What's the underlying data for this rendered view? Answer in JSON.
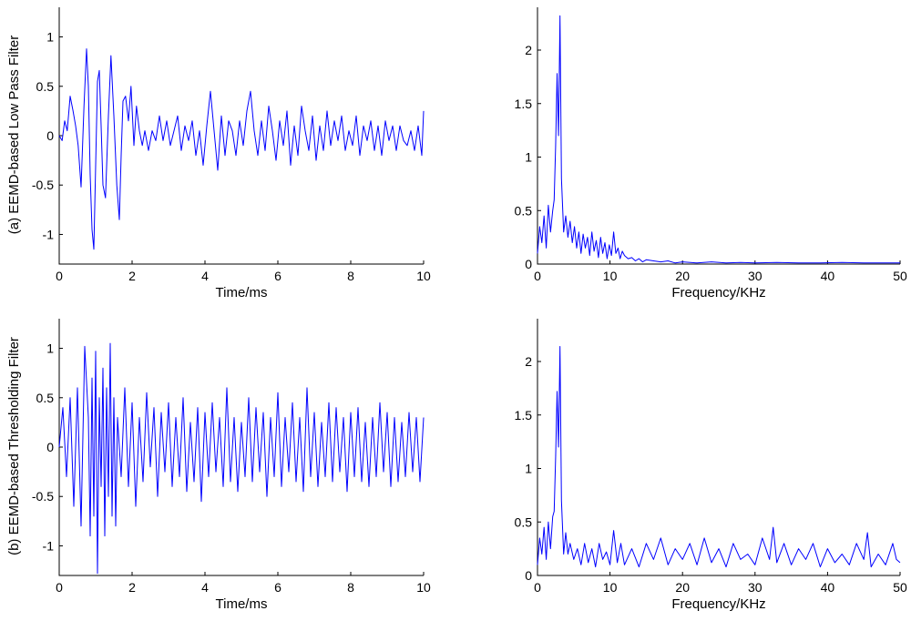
{
  "figure": {
    "row_labels": [
      "(a) EEMD-based Low Pass Filter",
      "(b) EEMD-based Thresholding Filter"
    ]
  },
  "colors": {
    "line": "#0000ff",
    "axis": "#000000",
    "background": "#ffffff"
  },
  "chart_data": [
    {
      "id": "a-time",
      "type": "line",
      "title": "",
      "xlabel": "Time/ms",
      "ylabel": "(a) EEMD-based Low Pass Filter",
      "xlim": [
        0,
        10
      ],
      "ylim": [
        -1.3,
        1.3
      ],
      "xticks": [
        0,
        2,
        4,
        6,
        8,
        10
      ],
      "yticks": [
        -1,
        -0.5,
        0,
        0.5,
        1
      ],
      "ytick_labels": [
        "-1",
        "-0.5",
        "0",
        "0.5",
        "1"
      ],
      "series": [
        {
          "x": [
            0,
            0.08,
            0.15,
            0.22,
            0.3,
            0.38,
            0.45,
            0.52,
            0.6,
            0.68,
            0.75,
            0.8,
            0.85,
            0.9,
            0.95,
            1.0,
            1.05,
            1.1,
            1.15,
            1.2,
            1.27,
            1.35,
            1.42,
            1.5,
            1.58,
            1.65,
            1.7,
            1.75,
            1.82,
            1.9,
            1.97,
            2.05,
            2.12,
            2.2,
            2.28,
            2.35,
            2.45,
            2.55,
            2.65,
            2.75,
            2.85,
            2.95,
            3.05,
            3.15,
            3.25,
            3.35,
            3.45,
            3.55,
            3.65,
            3.75,
            3.85,
            3.95,
            4.05,
            4.15,
            4.25,
            4.35,
            4.45,
            4.55,
            4.65,
            4.75,
            4.85,
            4.95,
            5.05,
            5.15,
            5.25,
            5.35,
            5.45,
            5.55,
            5.65,
            5.75,
            5.85,
            5.95,
            6.05,
            6.15,
            6.25,
            6.35,
            6.45,
            6.55,
            6.65,
            6.75,
            6.85,
            6.95,
            7.05,
            7.15,
            7.25,
            7.35,
            7.45,
            7.55,
            7.65,
            7.75,
            7.85,
            7.95,
            8.05,
            8.15,
            8.25,
            8.35,
            8.45,
            8.55,
            8.65,
            8.75,
            8.85,
            8.95,
            9.05,
            9.15,
            9.25,
            9.35,
            9.45,
            9.55,
            9.65,
            9.75,
            9.85,
            9.95,
            10.0
          ],
          "y": [
            0,
            -0.05,
            0.15,
            0.05,
            0.4,
            0.25,
            0.1,
            -0.1,
            -0.52,
            0.3,
            0.88,
            0.5,
            -0.4,
            -0.95,
            -1.15,
            -0.3,
            0.55,
            0.66,
            0.1,
            -0.5,
            -0.63,
            0.2,
            0.81,
            0.2,
            -0.5,
            -0.85,
            -0.2,
            0.35,
            0.4,
            0.15,
            0.5,
            -0.1,
            0.3,
            0.05,
            -0.1,
            0.05,
            -0.15,
            0.05,
            -0.05,
            0.2,
            -0.05,
            0.15,
            -0.1,
            0.05,
            0.2,
            -0.15,
            0.1,
            -0.05,
            0.15,
            -0.2,
            0.05,
            -0.3,
            0.1,
            0.45,
            0.05,
            -0.35,
            0.2,
            -0.2,
            0.15,
            0.05,
            -0.2,
            0.15,
            -0.1,
            0.25,
            0.45,
            0.05,
            -0.2,
            0.15,
            -0.15,
            0.3,
            0.05,
            -0.25,
            0.15,
            -0.1,
            0.25,
            -0.3,
            0.1,
            -0.2,
            0.3,
            0.05,
            -0.15,
            0.2,
            -0.25,
            0.1,
            -0.15,
            0.25,
            -0.1,
            0.15,
            -0.05,
            0.2,
            -0.15,
            0.05,
            -0.1,
            0.2,
            -0.2,
            0.1,
            -0.05,
            0.15,
            -0.15,
            0.1,
            -0.2,
            0.15,
            -0.05,
            0.1,
            -0.15,
            0.1,
            -0.05,
            -0.1,
            0.05,
            -0.15,
            0.1,
            -0.2,
            0.25
          ]
        }
      ]
    },
    {
      "id": "a-spectrum",
      "type": "line",
      "title": "",
      "xlabel": "Frequency/KHz",
      "ylabel": "",
      "xlim": [
        0,
        50
      ],
      "ylim": [
        0,
        2.4
      ],
      "xticks": [
        0,
        10,
        20,
        30,
        40,
        50
      ],
      "yticks": [
        0,
        0.5,
        1,
        1.5,
        2
      ],
      "ytick_labels": [
        "0",
        "0.5",
        "1",
        "1.5",
        "2"
      ],
      "series": [
        {
          "x": [
            0,
            0.3,
            0.6,
            0.9,
            1.2,
            1.5,
            1.8,
            2.1,
            2.3,
            2.5,
            2.7,
            2.9,
            3.1,
            3.3,
            3.6,
            3.9,
            4.2,
            4.5,
            4.8,
            5.1,
            5.4,
            5.7,
            6.0,
            6.3,
            6.6,
            6.9,
            7.2,
            7.5,
            7.8,
            8.1,
            8.4,
            8.7,
            9.0,
            9.3,
            9.6,
            9.9,
            10.2,
            10.5,
            10.8,
            11.1,
            11.4,
            11.7,
            12.0,
            12.5,
            13.0,
            13.5,
            14.0,
            14.5,
            15.0,
            16.0,
            17.0,
            18.0,
            19.0,
            20.0,
            22.0,
            24.0,
            26.0,
            28.0,
            30.0,
            33.0,
            36.0,
            39.0,
            42.0,
            45.0,
            48.0,
            50.0
          ],
          "y": [
            0.1,
            0.35,
            0.2,
            0.45,
            0.15,
            0.55,
            0.3,
            0.5,
            0.6,
            1.1,
            1.78,
            1.2,
            2.32,
            0.8,
            0.3,
            0.45,
            0.25,
            0.4,
            0.2,
            0.35,
            0.15,
            0.3,
            0.1,
            0.28,
            0.15,
            0.25,
            0.08,
            0.3,
            0.12,
            0.22,
            0.06,
            0.25,
            0.1,
            0.2,
            0.05,
            0.18,
            0.08,
            0.3,
            0.1,
            0.15,
            0.05,
            0.12,
            0.08,
            0.05,
            0.06,
            0.03,
            0.05,
            0.02,
            0.04,
            0.03,
            0.02,
            0.03,
            0.01,
            0.02,
            0.01,
            0.02,
            0.01,
            0.015,
            0.01,
            0.015,
            0.01,
            0.01,
            0.015,
            0.01,
            0.01,
            0.01
          ]
        }
      ]
    },
    {
      "id": "b-time",
      "type": "line",
      "title": "",
      "xlabel": "Time/ms",
      "ylabel": "(b) EEMD-based Thresholding Filter",
      "xlim": [
        0,
        10
      ],
      "ylim": [
        -1.3,
        1.3
      ],
      "xticks": [
        0,
        2,
        4,
        6,
        8,
        10
      ],
      "yticks": [
        -1,
        -0.5,
        0,
        0.5,
        1
      ],
      "ytick_labels": [
        "-1",
        "-0.5",
        "0",
        "0.5",
        "1"
      ],
      "series": [
        {
          "x": [
            0,
            0.1,
            0.2,
            0.3,
            0.4,
            0.5,
            0.6,
            0.7,
            0.8,
            0.85,
            0.9,
            0.95,
            1.0,
            1.05,
            1.1,
            1.15,
            1.2,
            1.25,
            1.3,
            1.35,
            1.4,
            1.45,
            1.5,
            1.55,
            1.6,
            1.7,
            1.8,
            1.9,
            2.0,
            2.1,
            2.2,
            2.3,
            2.4,
            2.5,
            2.6,
            2.7,
            2.8,
            2.9,
            3.0,
            3.1,
            3.2,
            3.3,
            3.4,
            3.5,
            3.6,
            3.7,
            3.8,
            3.9,
            4.0,
            4.1,
            4.2,
            4.3,
            4.4,
            4.5,
            4.6,
            4.7,
            4.8,
            4.9,
            5.0,
            5.1,
            5.2,
            5.3,
            5.4,
            5.5,
            5.6,
            5.7,
            5.8,
            5.9,
            6.0,
            6.1,
            6.2,
            6.3,
            6.4,
            6.5,
            6.6,
            6.7,
            6.8,
            6.9,
            7.0,
            7.1,
            7.2,
            7.3,
            7.4,
            7.5,
            7.6,
            7.7,
            7.8,
            7.9,
            8.0,
            8.1,
            8.2,
            8.3,
            8.4,
            8.5,
            8.6,
            8.7,
            8.8,
            8.9,
            9.0,
            9.1,
            9.2,
            9.3,
            9.4,
            9.5,
            9.6,
            9.7,
            9.8,
            9.9,
            10.0
          ],
          "y": [
            0,
            0.4,
            -0.3,
            0.5,
            -0.6,
            0.6,
            -0.8,
            1.02,
            0.3,
            -0.9,
            0.7,
            -0.7,
            0.97,
            -1.28,
            0.5,
            -0.4,
            0.8,
            -0.9,
            0.6,
            -0.5,
            1.05,
            -0.7,
            0.5,
            -0.8,
            0.3,
            -0.3,
            0.6,
            -0.4,
            0.45,
            -0.6,
            0.3,
            -0.35,
            0.55,
            -0.2,
            0.4,
            -0.5,
            0.35,
            -0.25,
            0.45,
            -0.4,
            0.3,
            -0.3,
            0.5,
            -0.45,
            0.25,
            -0.35,
            0.4,
            -0.55,
            0.35,
            -0.3,
            0.45,
            -0.25,
            0.3,
            -0.4,
            0.6,
            -0.35,
            0.3,
            -0.45,
            0.25,
            -0.3,
            0.5,
            -0.35,
            0.4,
            -0.25,
            0.35,
            -0.5,
            0.3,
            -0.3,
            0.55,
            -0.4,
            0.3,
            -0.25,
            0.45,
            -0.35,
            0.3,
            -0.45,
            0.6,
            -0.3,
            0.35,
            -0.4,
            0.25,
            -0.3,
            0.45,
            -0.35,
            0.4,
            -0.25,
            0.3,
            -0.45,
            0.35,
            -0.3,
            0.4,
            -0.35,
            0.25,
            -0.4,
            0.3,
            -0.3,
            0.45,
            -0.25,
            0.35,
            -0.4,
            0.3,
            -0.35,
            0.25,
            -0.3,
            0.35,
            -0.25,
            0.3,
            -0.35,
            0.3
          ]
        }
      ]
    },
    {
      "id": "b-spectrum",
      "type": "line",
      "title": "",
      "xlabel": "Frequency/KHz",
      "ylabel": "",
      "xlim": [
        0,
        50
      ],
      "ylim": [
        0,
        2.4
      ],
      "xticks": [
        0,
        10,
        20,
        30,
        40,
        50
      ],
      "yticks": [
        0,
        0.5,
        1,
        1.5,
        2
      ],
      "ytick_labels": [
        "0",
        "0.5",
        "1",
        "1.5",
        "2"
      ],
      "series": [
        {
          "x": [
            0,
            0.3,
            0.6,
            0.9,
            1.2,
            1.5,
            1.8,
            2.1,
            2.3,
            2.5,
            2.7,
            2.9,
            3.1,
            3.3,
            3.6,
            3.9,
            4.2,
            4.5,
            5.0,
            5.5,
            6.0,
            6.5,
            7.0,
            7.5,
            8.0,
            8.5,
            9.0,
            9.5,
            10.0,
            10.5,
            11.0,
            11.5,
            12.0,
            13.0,
            14.0,
            15.0,
            16.0,
            17.0,
            18.0,
            19.0,
            20.0,
            21.0,
            22.0,
            23.0,
            24.0,
            25.0,
            26.0,
            27.0,
            28.0,
            29.0,
            30.0,
            31.0,
            32.0,
            32.5,
            33.0,
            34.0,
            35.0,
            36.0,
            37.0,
            38.0,
            39.0,
            40.0,
            41.0,
            42.0,
            43.0,
            44.0,
            45.0,
            45.5,
            46.0,
            47.0,
            48.0,
            49.0,
            49.5,
            50.0
          ],
          "y": [
            0.1,
            0.35,
            0.2,
            0.45,
            0.15,
            0.5,
            0.25,
            0.55,
            0.6,
            1.1,
            1.72,
            1.2,
            2.14,
            0.7,
            0.2,
            0.4,
            0.2,
            0.3,
            0.15,
            0.25,
            0.1,
            0.3,
            0.12,
            0.25,
            0.08,
            0.3,
            0.15,
            0.22,
            0.1,
            0.42,
            0.12,
            0.3,
            0.1,
            0.25,
            0.08,
            0.3,
            0.15,
            0.35,
            0.1,
            0.25,
            0.15,
            0.3,
            0.1,
            0.35,
            0.12,
            0.25,
            0.08,
            0.3,
            0.15,
            0.2,
            0.1,
            0.35,
            0.15,
            0.45,
            0.12,
            0.3,
            0.1,
            0.25,
            0.15,
            0.3,
            0.08,
            0.25,
            0.12,
            0.2,
            0.1,
            0.3,
            0.15,
            0.4,
            0.08,
            0.2,
            0.1,
            0.3,
            0.15,
            0.12
          ]
        }
      ]
    }
  ]
}
